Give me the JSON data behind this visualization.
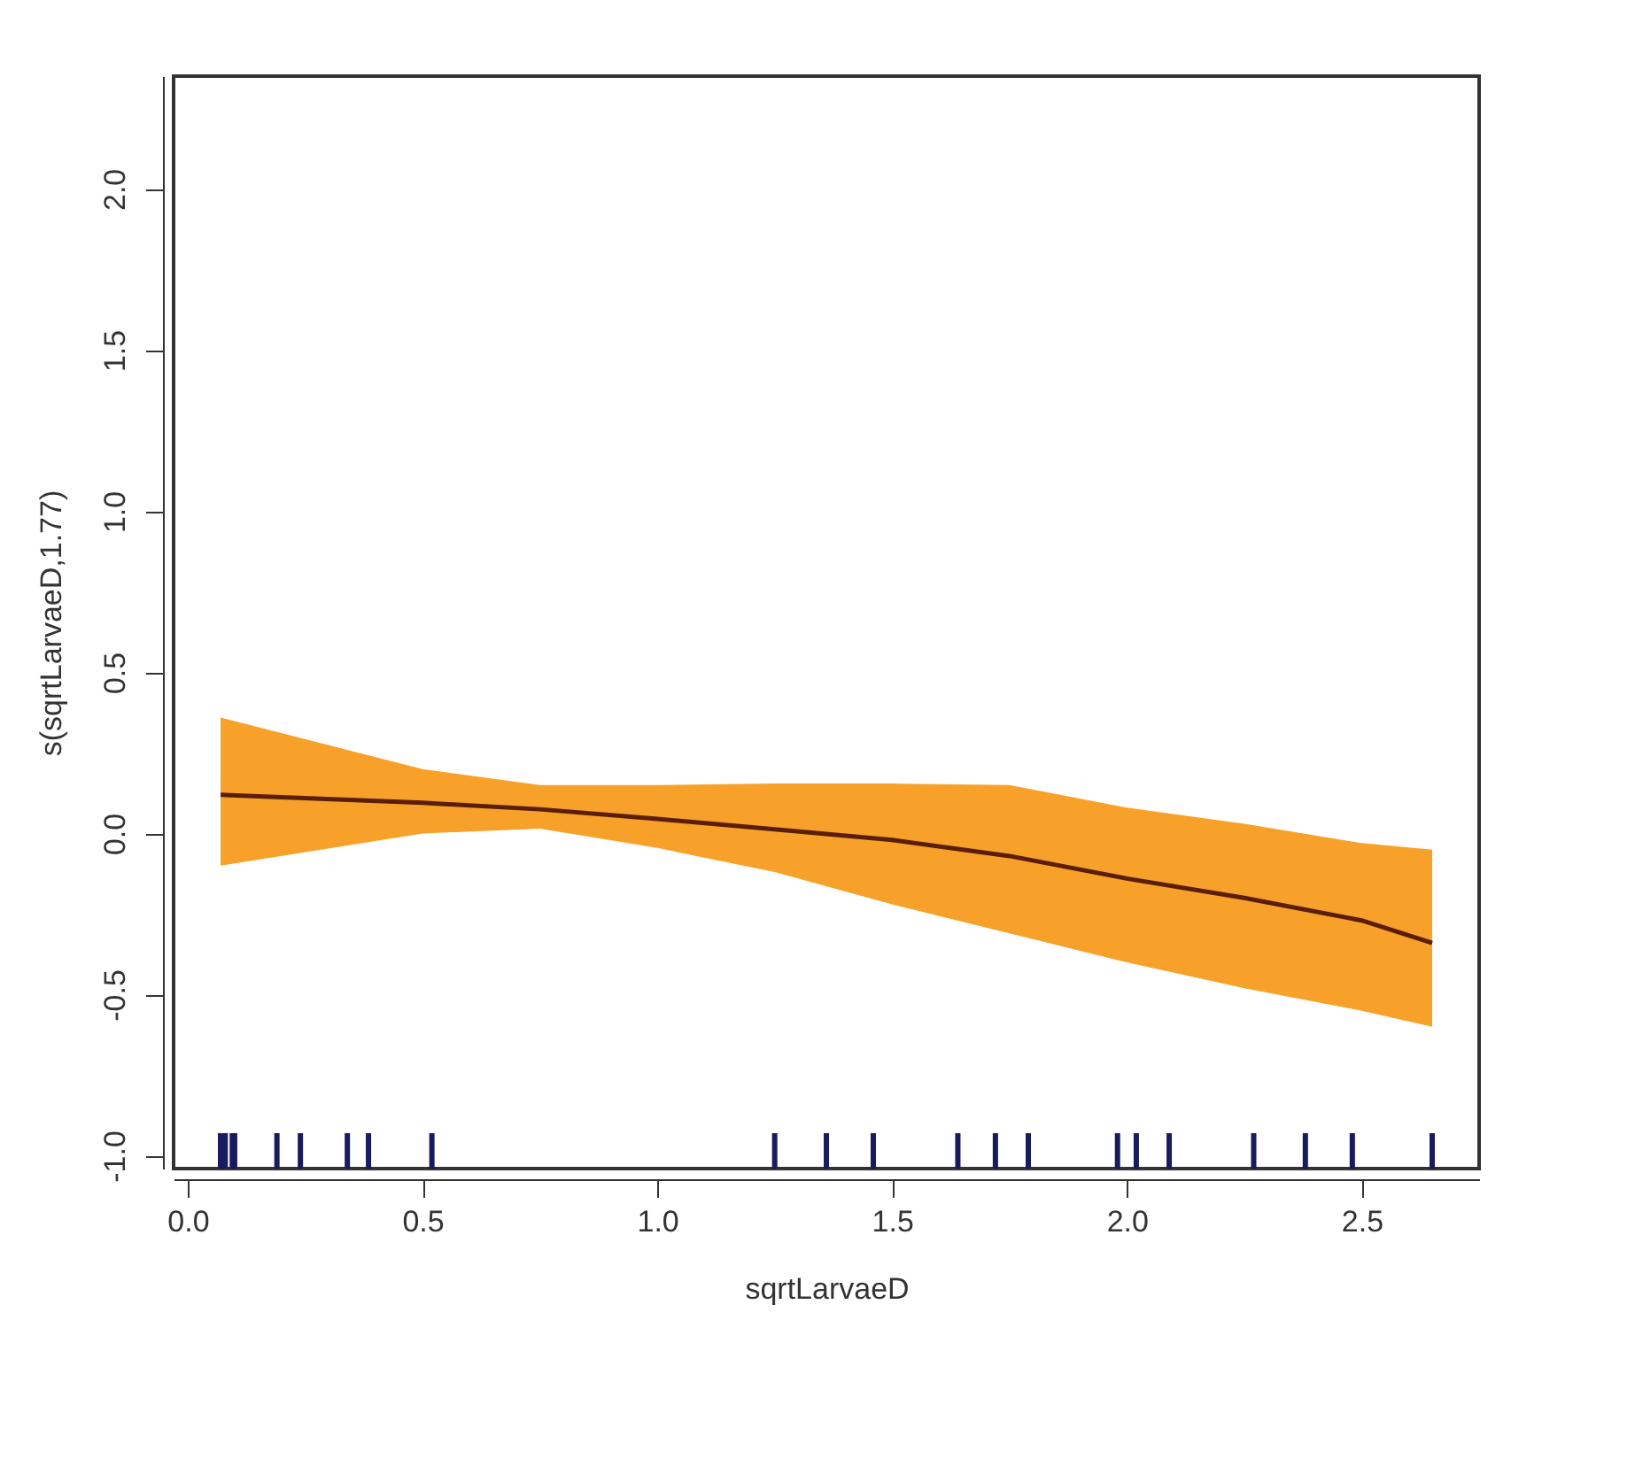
{
  "chart_data": {
    "type": "line",
    "xlabel": "sqrtLarvaeD",
    "ylabel": "s(sqrtLarvaeD,1.77)",
    "xlim": [
      -0.03,
      2.75
    ],
    "ylim": [
      -1.04,
      2.35
    ],
    "xticks": [
      {
        "value": 0,
        "label": "0.0"
      },
      {
        "value": 0.5,
        "label": "0.5"
      },
      {
        "value": 1,
        "label": "1.0"
      },
      {
        "value": 1.5,
        "label": "1.5"
      },
      {
        "value": 2,
        "label": "2.0"
      },
      {
        "value": 2.5,
        "label": "2.5"
      }
    ],
    "yticks": [
      {
        "value": -1,
        "label": "-1.0"
      },
      {
        "value": -0.5,
        "label": "-0.5"
      },
      {
        "value": 0,
        "label": "0.0"
      },
      {
        "value": 0.5,
        "label": "0.5"
      },
      {
        "value": 1,
        "label": "1.0"
      },
      {
        "value": 1.5,
        "label": "1.5"
      },
      {
        "value": 2,
        "label": "2.0"
      }
    ],
    "grid": false,
    "series": [
      {
        "color": "#5a1e0a",
        "x": [
          0.07,
          0.5,
          0.75,
          1.0,
          1.25,
          1.5,
          1.75,
          2.0,
          2.25,
          2.5,
          2.65
        ],
        "values": [
          0.12,
          0.095,
          0.075,
          0.045,
          0.013,
          -0.02,
          -0.07,
          -0.14,
          -0.2,
          -0.27,
          -0.34
        ],
        "lower": [
          -0.1,
          0.0,
          0.015,
          -0.045,
          -0.12,
          -0.22,
          -0.31,
          -0.4,
          -0.48,
          -0.55,
          -0.6
        ],
        "upper": [
          0.36,
          0.2,
          0.15,
          0.15,
          0.155,
          0.155,
          0.15,
          0.08,
          0.03,
          -0.03,
          -0.05
        ]
      },
      {
        "type": "bar",
        "color": "#1a1a5e",
        "base": [
          -1.04,
          -1.04,
          -1.04,
          -1.04,
          -1.04,
          -1.04,
          -1.04,
          -1.04,
          -1.04,
          -1.04,
          -1.04,
          -1.04,
          -1.04,
          -1.04,
          -1.04,
          -1.04,
          -1.04,
          -1.04,
          -1.04,
          -1.04,
          -1.04,
          -1.04
        ],
        "x": [
          0.07,
          0.08,
          0.095,
          0.1,
          0.19,
          0.24,
          0.34,
          0.385,
          0.52,
          1.25,
          1.36,
          1.46,
          1.64,
          1.72,
          1.79,
          1.98,
          2.02,
          2.09,
          2.27,
          2.38,
          2.48,
          2.65
        ],
        "values": [
          0.11,
          0.11,
          0.11,
          0.11,
          0.11,
          0.11,
          0.11,
          0.11,
          0.11,
          0.11,
          0.11,
          0.11,
          0.11,
          0.11,
          0.11,
          0.11,
          0.11,
          0.11,
          0.11,
          0.11,
          0.11,
          0.11
        ]
      }
    ]
  }
}
